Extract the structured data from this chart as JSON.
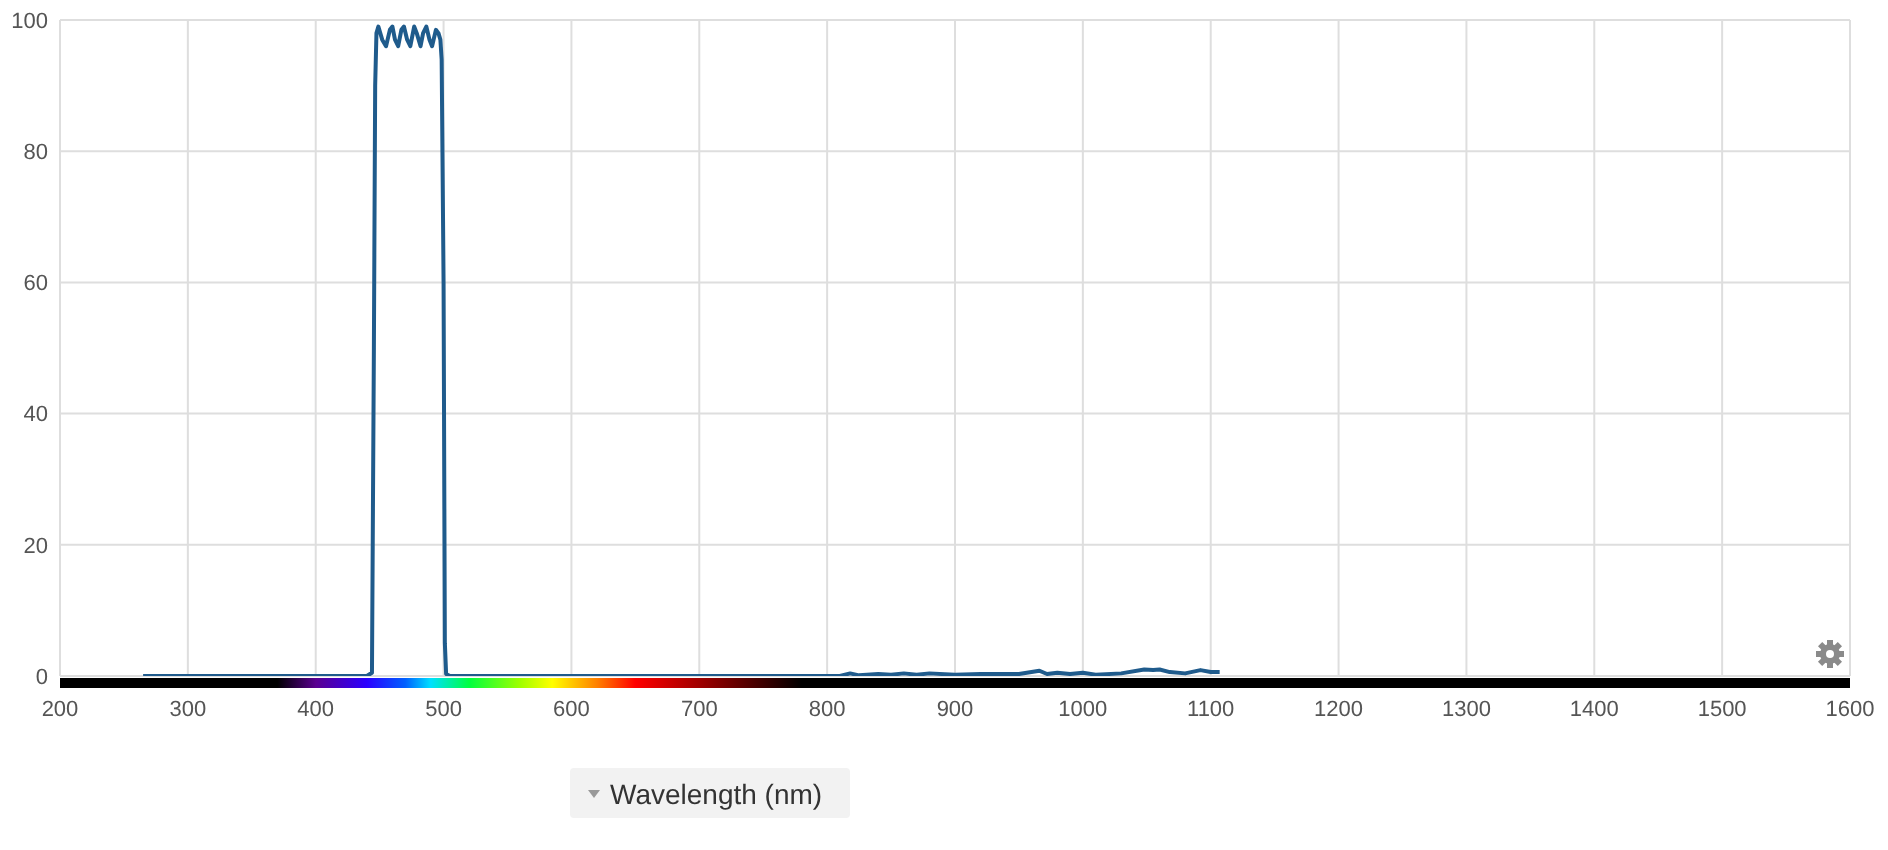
{
  "chart_data": {
    "type": "line",
    "xlabel": "Wavelength (nm)",
    "x": [
      265,
      440,
      444,
      445.5,
      446.5,
      447.5,
      449,
      452,
      455,
      458,
      460,
      462,
      464.5,
      467,
      469,
      471.5,
      474,
      477,
      479,
      482,
      484,
      486.5,
      489,
      491,
      494,
      496,
      497.5,
      498.5,
      500,
      501,
      502,
      505,
      810,
      818,
      825,
      840,
      850,
      860,
      870,
      880,
      900,
      920,
      950,
      966,
      972,
      980,
      990,
      1000,
      1010,
      1030,
      1048,
      1055,
      1060,
      1068,
      1080,
      1092,
      1100,
      1107
    ],
    "values": [
      0,
      0,
      0.5,
      50,
      90,
      98,
      99,
      97,
      96,
      98.5,
      99,
      97,
      96,
      98.5,
      99,
      97,
      96,
      99,
      98,
      96,
      98,
      99,
      97,
      96,
      98.5,
      98,
      97,
      94,
      60,
      5,
      0.3,
      0,
      0,
      0.4,
      0.1,
      0.3,
      0.2,
      0.4,
      0.2,
      0.4,
      0.2,
      0.3,
      0.3,
      0.8,
      0.3,
      0.5,
      0.3,
      0.5,
      0.2,
      0.4,
      1.0,
      0.9,
      1.0,
      0.6,
      0.4,
      0.9,
      0.6,
      0.6
    ],
    "color": "#1f5b8c",
    "xlim": [
      200,
      1600
    ],
    "xticks": [
      200,
      300,
      400,
      500,
      600,
      700,
      800,
      900,
      1000,
      1100,
      1200,
      1300,
      1400,
      1500,
      1600
    ],
    "ylim": [
      0,
      100
    ],
    "yticks": [
      0,
      20,
      40,
      60,
      80,
      100
    ],
    "grid": true,
    "marker": "none",
    "line_style": "solid"
  }
}
